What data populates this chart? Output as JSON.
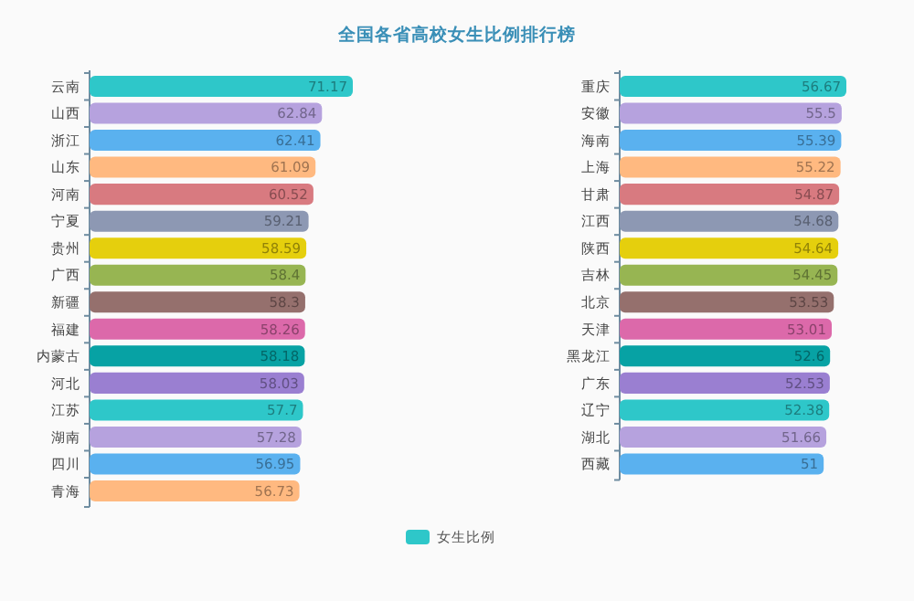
{
  "chart_data": [
    {
      "type": "bar",
      "orientation": "horizontal",
      "title": "全国各省高校女生比例排行榜",
      "legend": "bottom",
      "data_labels": true,
      "categories": [
        "云南",
        "山西",
        "浙江",
        "山东",
        "河南",
        "宁夏",
        "贵州",
        "广西",
        "新疆",
        "福建",
        "内蒙古",
        "河北",
        "江苏",
        "湖南",
        "四川",
        "青海"
      ],
      "series": [
        {
          "name": "女生比例",
          "color": "#2ec7c9",
          "colors": [
            "#2ec7c9",
            "#b6a2de",
            "#5ab1ef",
            "#ffb980",
            "#d87a80",
            "#8d98b3",
            "#e5cf0d",
            "#97b552",
            "#95706d",
            "#dc69aa",
            "#07a2a4",
            "#9a7fd1",
            "#2ec7c9",
            "#b6a2de",
            "#5ab1ef",
            "#ffb980"
          ],
          "values": [
            71.17,
            62.84,
            62.41,
            61.09,
            60.52,
            59.21,
            58.59,
            58.4,
            58.3,
            58.26,
            58.18,
            58.03,
            57.7,
            57.28,
            56.95,
            56.73
          ]
        }
      ]
    },
    {
      "type": "bar",
      "orientation": "horizontal",
      "data_labels": true,
      "categories": [
        "重庆",
        "安徽",
        "海南",
        "上海",
        "甘肃",
        "江西",
        "陕西",
        "吉林",
        "北京",
        "天津",
        "黑龙江",
        "广东",
        "辽宁",
        "湖北",
        "西藏"
      ],
      "series": [
        {
          "colors": [
            "#2ec7c9",
            "#b6a2de",
            "#5ab1ef",
            "#ffb980",
            "#d87a80",
            "#8d98b3",
            "#e5cf0d",
            "#97b552",
            "#95706d",
            "#dc69aa",
            "#07a2a4",
            "#9a7fd1",
            "#2ec7c9",
            "#b6a2de",
            "#5ab1ef"
          ],
          "values": [
            56.67,
            55.5,
            55.39,
            55.22,
            54.87,
            54.68,
            54.64,
            54.45,
            53.53,
            53.01,
            52.6,
            52.53,
            52.38,
            51.66,
            51
          ]
        }
      ]
    }
  ]
}
